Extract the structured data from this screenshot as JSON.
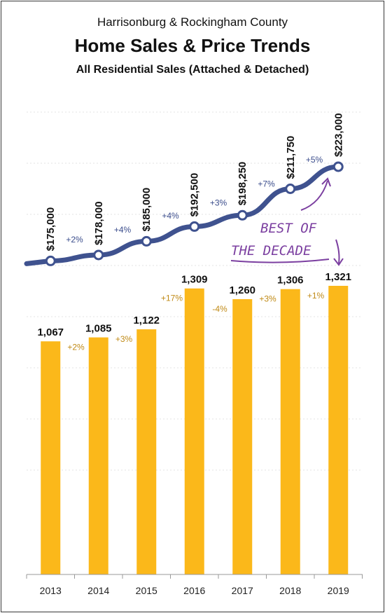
{
  "header": {
    "location": "Harrisonburg & Rockingham County",
    "title": "Home Sales & Price Trends",
    "subtitle": "All Residential Sales (Attached & Detached)"
  },
  "annotation": {
    "line1": "BEST OF",
    "line2": "THE DECADE"
  },
  "colors": {
    "bars": "#FBB81A",
    "line": "#3F528F",
    "sales_pct": "#C08A16",
    "price_pct": "#3B4D8C",
    "note": "#7B3FA0"
  },
  "chart_data": {
    "type": "bar",
    "categories": [
      "2013",
      "2014",
      "2015",
      "2016",
      "2017",
      "2018",
      "2019"
    ],
    "series": [
      {
        "type": "bar",
        "values": [
          1067,
          1085,
          1122,
          1309,
          1260,
          1306,
          1321
        ],
        "labels": [
          "1,067",
          "1,085",
          "1,122",
          "1,309",
          "1,260",
          "1,306",
          "1,321"
        ],
        "changes": [
          "+2%",
          "+3%",
          "+17%",
          "-4%",
          "+3%",
          "+1%"
        ]
      },
      {
        "type": "line",
        "values": [
          175000,
          178000,
          185000,
          192500,
          198250,
          211750,
          223000
        ],
        "labels": [
          "$175,000",
          "$178,000",
          "$185,000",
          "$192,500",
          "$198,250",
          "$211,750",
          "$223,000"
        ],
        "changes": [
          "+2%",
          "+4%",
          "+4%",
          "+3%",
          "+7%",
          "+5%"
        ]
      }
    ],
    "grid": true,
    "legend": "none"
  }
}
